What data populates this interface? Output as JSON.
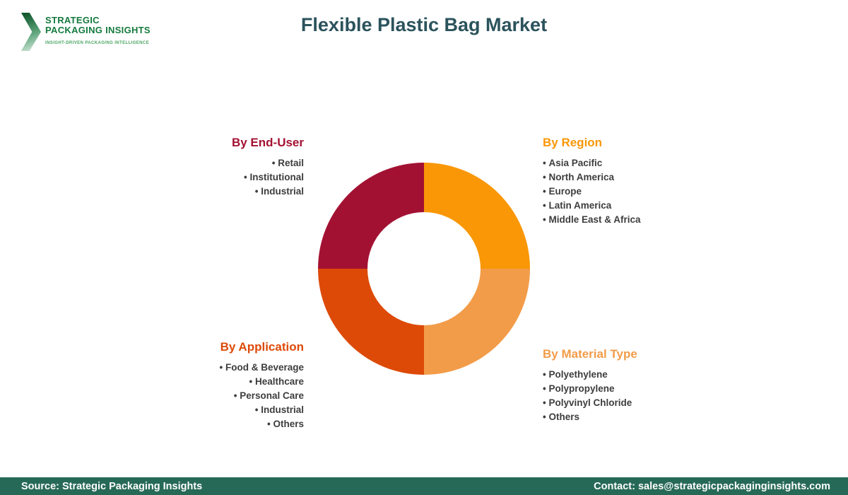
{
  "logo": {
    "line1": "STRATEGIC",
    "line2": "PACKAGING INSIGHTS",
    "tagline": "INSIGHT-DRIVEN PACKAGING INTELLIGENCE"
  },
  "header": {
    "title": "Flexible Plastic Bag Market"
  },
  "chart_data": {
    "type": "pie",
    "donut": true,
    "title": "Flexible Plastic Bag Market",
    "legend_position": "corner-labels",
    "segments": [
      {
        "label": "By Region",
        "value": 25,
        "color": "#F99706"
      },
      {
        "label": "By Material Type",
        "value": 25,
        "color": "#F29C49"
      },
      {
        "label": "By Application",
        "value": 25,
        "color": "#DD4A08"
      },
      {
        "label": "By End-User",
        "value": 25,
        "color": "#A31132"
      }
    ]
  },
  "categories": [
    {
      "title": "By End-User",
      "color": "#A31132",
      "items": [
        "Retail",
        "Institutional",
        "Industrial"
      ]
    },
    {
      "title": "By Region",
      "color": "#F99706",
      "items": [
        "Asia Pacific",
        "North America",
        "Europe",
        "Latin America",
        "Middle East & Africa"
      ]
    },
    {
      "title": "By Application",
      "color": "#DD4A08",
      "items": [
        "Food & Beverage",
        "Healthcare",
        "Personal Care",
        "Industrial",
        "Others"
      ]
    },
    {
      "title": "By Material Type",
      "color": "#F29C49",
      "items": [
        "Polyethylene",
        "Polypropylene",
        "Polyvinyl Chloride",
        "Others"
      ]
    }
  ],
  "footer": {
    "source": "Source: Strategic Packaging Insights",
    "contact": "Contact: sales@strategicpackaginginsights.com"
  }
}
